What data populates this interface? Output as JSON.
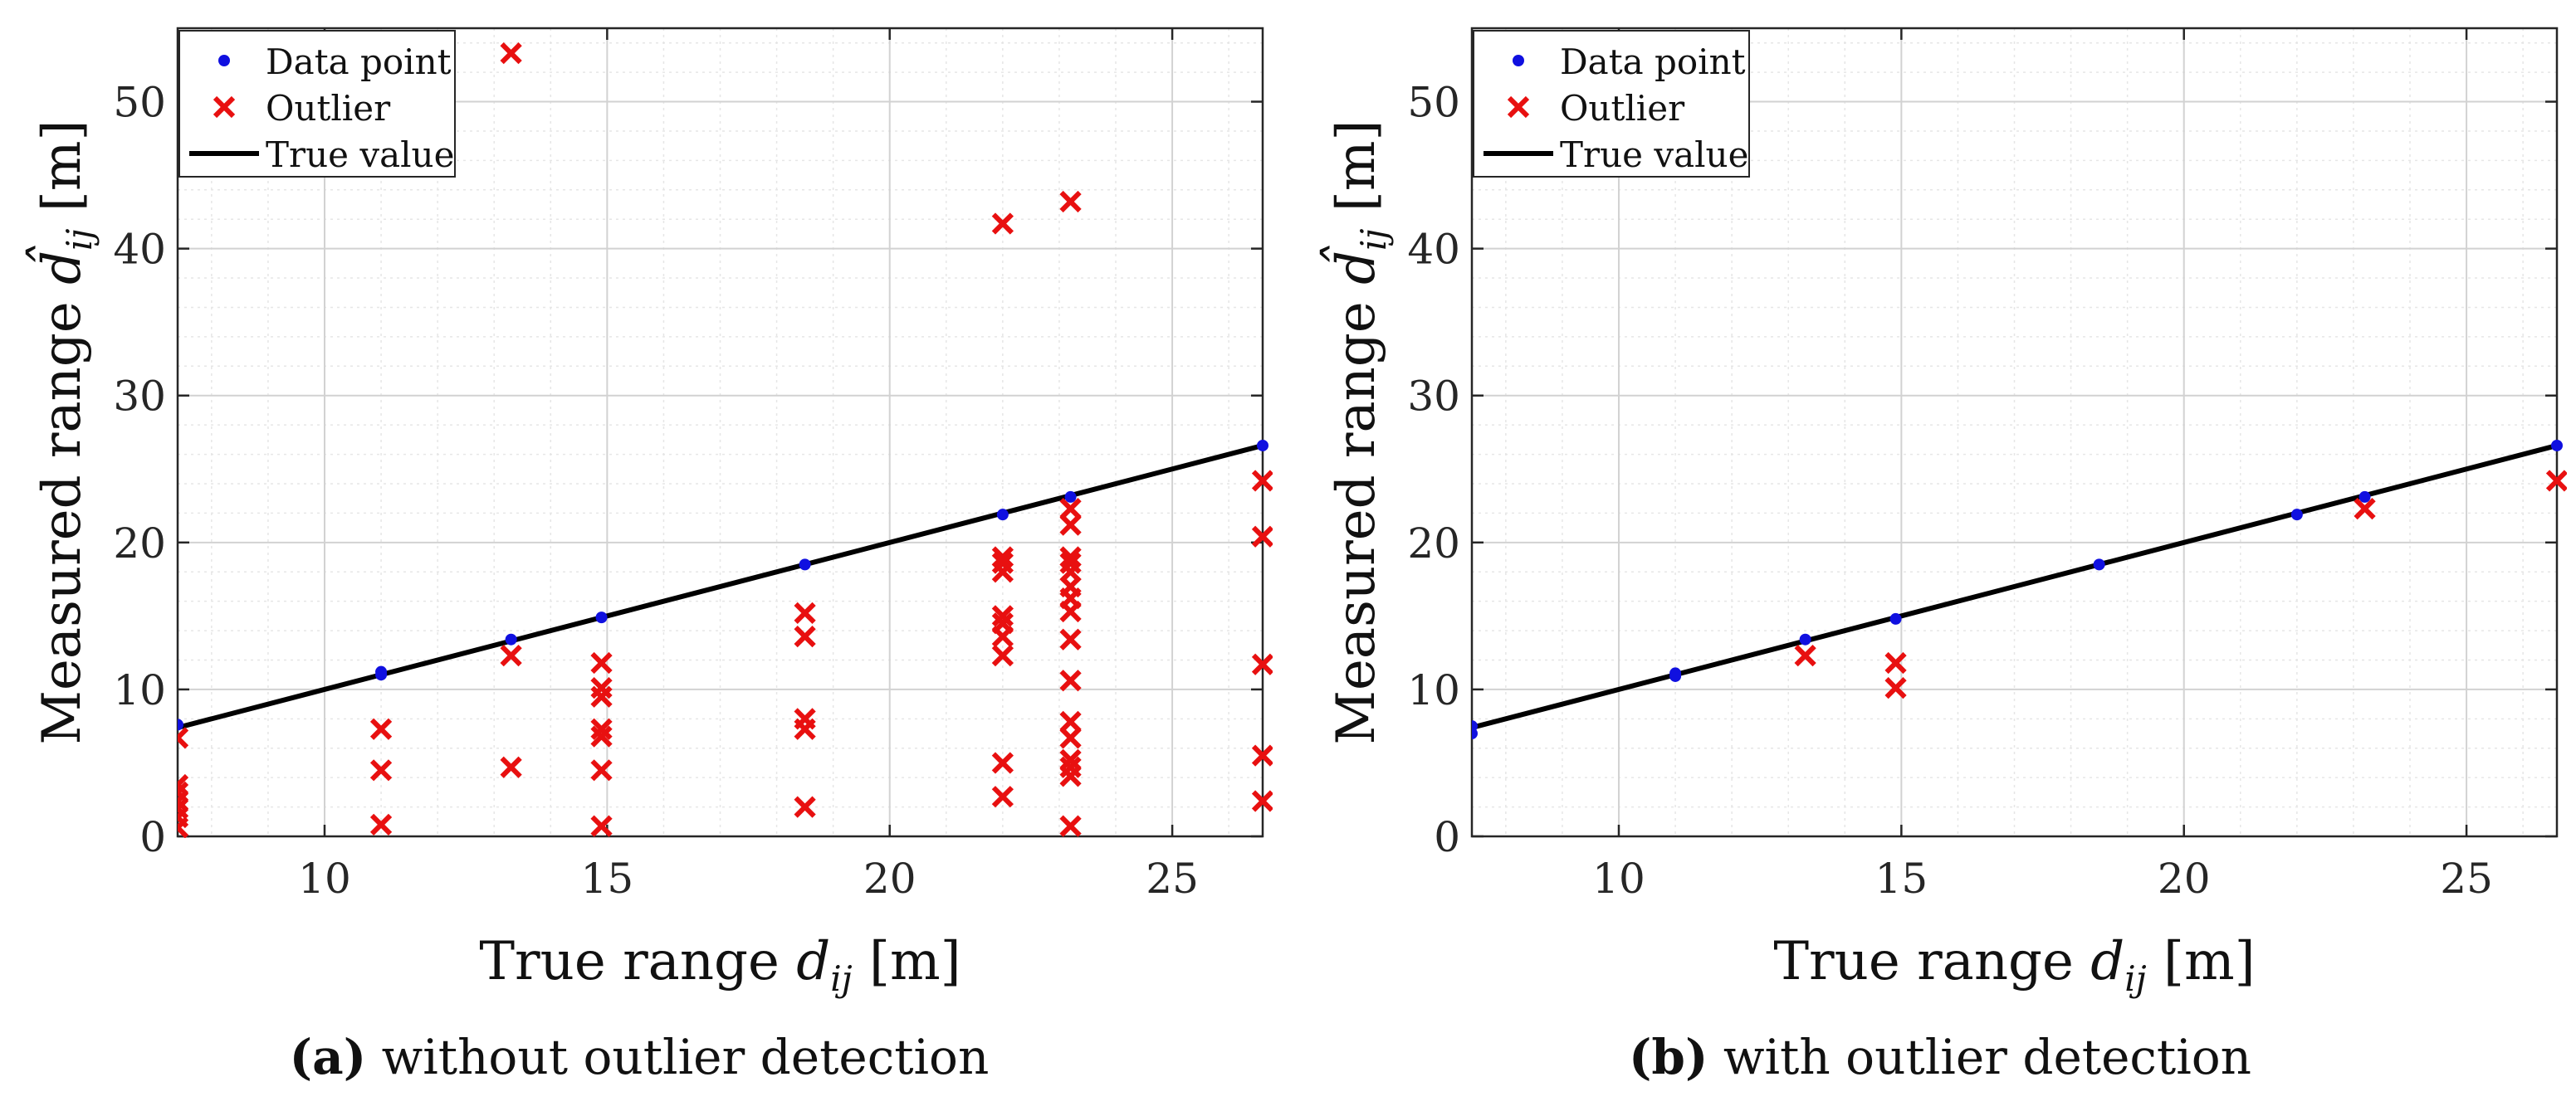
{
  "chart_data": [
    {
      "type": "scatter",
      "panel": "a",
      "xlabel": "True range",
      "xlabel_var": "d",
      "xlabel_sub": "ij",
      "xlabel_unit": "[m]",
      "ylabel": "Measured range",
      "ylabel_var": "d̂",
      "ylabel_sub": "ij",
      "ylabel_unit": "[m]",
      "xlim": [
        7.4,
        26.6
      ],
      "ylim": [
        0,
        55
      ],
      "xticks": [
        10,
        15,
        20,
        25
      ],
      "yticks": [
        0,
        10,
        20,
        30,
        40,
        50
      ],
      "grid": true,
      "legend_position": "top-left",
      "legend": [
        "Data point",
        "Outlier",
        "True value"
      ],
      "series": [
        {
          "name": "True value",
          "kind": "line",
          "color": "#000000",
          "points": [
            [
              7.4,
              7.4
            ],
            [
              26.6,
              26.6
            ]
          ]
        },
        {
          "name": "Data point",
          "kind": "dot",
          "color": "#1010e0",
          "points": [
            [
              7.4,
              7.6
            ],
            [
              11.0,
              11.0
            ],
            [
              11.0,
              11.2
            ],
            [
              13.3,
              13.4
            ],
            [
              14.9,
              14.9
            ],
            [
              18.5,
              18.5
            ],
            [
              22.0,
              21.9
            ],
            [
              23.2,
              23.1
            ],
            [
              26.6,
              26.6
            ]
          ]
        },
        {
          "name": "Outlier",
          "kind": "cross",
          "color": "#e81010",
          "points": [
            [
              7.4,
              0.6
            ],
            [
              7.4,
              1.3
            ],
            [
              7.4,
              1.9
            ],
            [
              7.4,
              2.4
            ],
            [
              7.4,
              3.0
            ],
            [
              7.4,
              3.5
            ],
            [
              7.4,
              6.7
            ],
            [
              11.0,
              0.8
            ],
            [
              11.0,
              4.5
            ],
            [
              11.0,
              7.3
            ],
            [
              13.3,
              4.7
            ],
            [
              13.3,
              12.3
            ],
            [
              13.3,
              53.3
            ],
            [
              14.9,
              0.7
            ],
            [
              14.9,
              4.5
            ],
            [
              14.9,
              6.8
            ],
            [
              14.9,
              7.3
            ],
            [
              14.9,
              9.5
            ],
            [
              14.9,
              10.1
            ],
            [
              14.9,
              11.8
            ],
            [
              18.5,
              2.0
            ],
            [
              18.5,
              7.3
            ],
            [
              18.5,
              8.0
            ],
            [
              18.5,
              13.6
            ],
            [
              18.5,
              15.2
            ],
            [
              22.0,
              2.7
            ],
            [
              22.0,
              5.0
            ],
            [
              22.0,
              12.3
            ],
            [
              22.0,
              13.6
            ],
            [
              22.0,
              14.5
            ],
            [
              22.0,
              15.0
            ],
            [
              22.0,
              18.0
            ],
            [
              22.0,
              18.6
            ],
            [
              22.0,
              19.0
            ],
            [
              22.0,
              41.7
            ],
            [
              23.2,
              0.7
            ],
            [
              23.2,
              4.1
            ],
            [
              23.2,
              4.7
            ],
            [
              23.2,
              5.2
            ],
            [
              23.2,
              6.7
            ],
            [
              23.2,
              7.8
            ],
            [
              23.2,
              10.6
            ],
            [
              23.2,
              13.4
            ],
            [
              23.2,
              15.3
            ],
            [
              23.2,
              16.2
            ],
            [
              23.2,
              17.0
            ],
            [
              23.2,
              18.0
            ],
            [
              23.2,
              18.6
            ],
            [
              23.2,
              19.0
            ],
            [
              23.2,
              21.2
            ],
            [
              23.2,
              22.3
            ],
            [
              23.2,
              43.2
            ],
            [
              26.6,
              2.4
            ],
            [
              26.6,
              5.5
            ],
            [
              26.6,
              11.7
            ],
            [
              26.6,
              20.4
            ],
            [
              26.6,
              24.2
            ]
          ]
        }
      ],
      "caption_label": "(a)",
      "caption_text": "without outlier detection"
    },
    {
      "type": "scatter",
      "panel": "b",
      "xlabel": "True range",
      "xlabel_var": "d",
      "xlabel_sub": "ij",
      "xlabel_unit": "[m]",
      "ylabel": "Measured range",
      "ylabel_var": "d̂",
      "ylabel_sub": "ij",
      "ylabel_unit": "[m]",
      "xlim": [
        7.4,
        26.6
      ],
      "ylim": [
        0,
        55
      ],
      "xticks": [
        10,
        15,
        20,
        25
      ],
      "yticks": [
        0,
        10,
        20,
        30,
        40,
        50
      ],
      "grid": true,
      "legend_position": "top-left",
      "legend": [
        "Data point",
        "Outlier",
        "True value"
      ],
      "series": [
        {
          "name": "True value",
          "kind": "line",
          "color": "#000000",
          "points": [
            [
              7.4,
              7.4
            ],
            [
              26.6,
              26.6
            ]
          ]
        },
        {
          "name": "Data point",
          "kind": "dot",
          "color": "#1010e0",
          "points": [
            [
              7.4,
              7.0
            ],
            [
              7.4,
              7.5
            ],
            [
              11.0,
              10.9
            ],
            [
              11.0,
              11.1
            ],
            [
              13.3,
              13.4
            ],
            [
              14.9,
              14.8
            ],
            [
              18.5,
              18.5
            ],
            [
              22.0,
              21.9
            ],
            [
              23.2,
              23.1
            ],
            [
              26.6,
              26.6
            ]
          ]
        },
        {
          "name": "Outlier",
          "kind": "cross",
          "color": "#e81010",
          "points": [
            [
              13.3,
              12.3
            ],
            [
              14.9,
              10.1
            ],
            [
              14.9,
              11.8
            ],
            [
              23.2,
              22.3
            ],
            [
              26.6,
              24.2
            ]
          ]
        }
      ],
      "caption_label": "(b)",
      "caption_text": "with outlier detection"
    }
  ]
}
